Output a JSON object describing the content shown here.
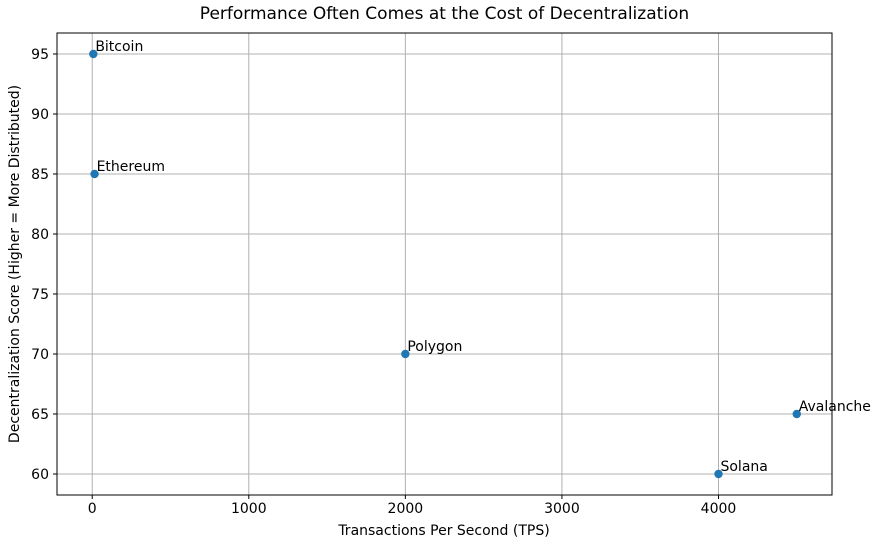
{
  "chart_data": {
    "type": "scatter",
    "title": "Performance Often Comes at the Cost of Decentralization",
    "xlabel": "Transactions Per Second (TPS)",
    "ylabel": "Decentralization Score (Higher = More Distributed)",
    "points": [
      {
        "label": "Bitcoin",
        "x": 7,
        "y": 95
      },
      {
        "label": "Ethereum",
        "x": 15,
        "y": 85
      },
      {
        "label": "Polygon",
        "x": 2000,
        "y": 70
      },
      {
        "label": "Solana",
        "x": 4000,
        "y": 60
      },
      {
        "label": "Avalanche",
        "x": 4500,
        "y": 65
      }
    ],
    "xticks": [
      0,
      1000,
      2000,
      3000,
      4000
    ],
    "yticks": [
      60,
      65,
      70,
      75,
      80,
      85,
      90,
      95
    ],
    "xlim": [
      -225,
      4725
    ],
    "ylim": [
      58.25,
      96.75
    ],
    "grid": true,
    "legend": false,
    "marker_color": "#1f77b4",
    "grid_color": "#b0b0b0",
    "spine_color": "#000000"
  }
}
